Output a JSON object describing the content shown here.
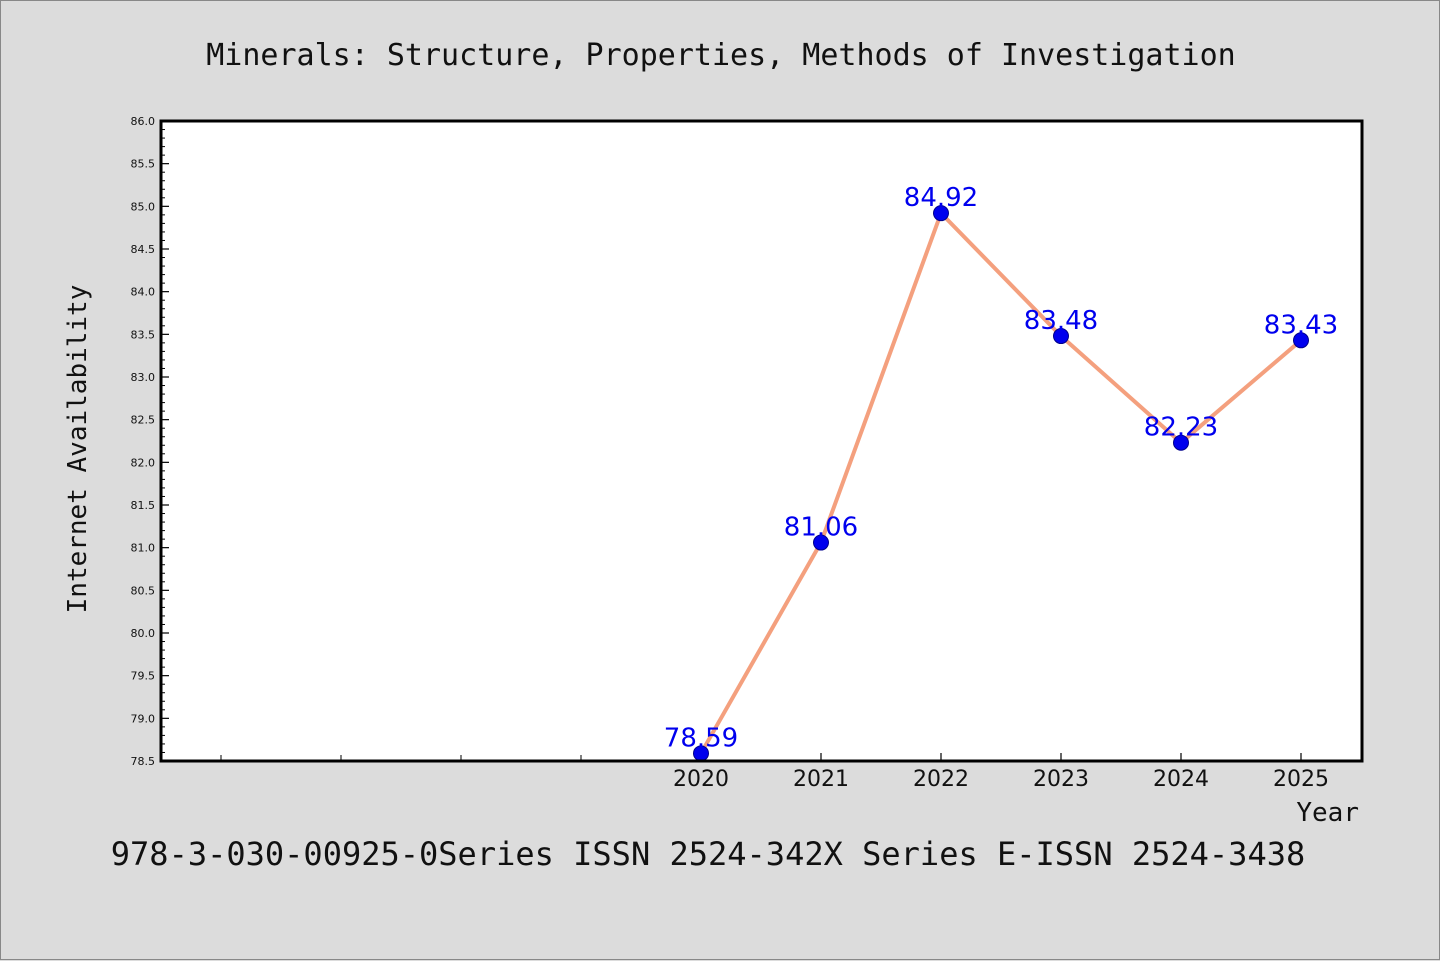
{
  "chart_data": {
    "type": "line",
    "title": "Minerals: Structure, Properties, Methods of Investigation",
    "xlabel": "Year",
    "ylabel": "Internet Availability",
    "footer": "978-3-030-00925-0Series ISSN 2524-342X Series E-ISSN 2524-3438",
    "xlim": [
      2015.5,
      2025.5
    ],
    "ylim": [
      78.5,
      86.0
    ],
    "y_tick_step": 0.5,
    "x_tick_labels": [
      "2020",
      "2021",
      "2022",
      "2023",
      "2024",
      "2025"
    ],
    "x_minor_ticks": [
      2016,
      2017,
      2018,
      2019
    ],
    "grid": false,
    "series": [
      {
        "x": [
          2020,
          2021,
          2022,
          2023,
          2024,
          2025
        ],
        "y": [
          78.59,
          81.06,
          84.92,
          83.48,
          82.23,
          83.43
        ],
        "labels": [
          "78.59",
          "81.06",
          "84.92",
          "83.48",
          "82.23",
          "83.43"
        ],
        "line_color": "#f4a07e",
        "marker_color": "#0000ee",
        "label_color": "#0000ee"
      }
    ]
  }
}
